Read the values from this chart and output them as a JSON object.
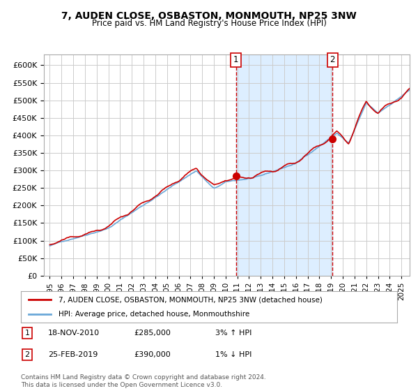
{
  "title": "7, AUDEN CLOSE, OSBASTON, MONMOUTH, NP25 3NW",
  "subtitle": "Price paid vs. HM Land Registry's House Price Index (HPI)",
  "legend_line1": "7, AUDEN CLOSE, OSBASTON, MONMOUTH, NP25 3NW (detached house)",
  "legend_line2": "HPI: Average price, detached house, Monmouthshire",
  "transaction1_date": "18-NOV-2010",
  "transaction1_price": 285000,
  "transaction1_pct": "3% ↑ HPI",
  "transaction2_date": "25-FEB-2019",
  "transaction2_price": 390000,
  "transaction2_pct": "1% ↓ HPI",
  "footnote": "Contains HM Land Registry data © Crown copyright and database right 2024.\nThis data is licensed under the Open Government Licence v3.0.",
  "hpi_color": "#6aa8d8",
  "price_color": "#cc0000",
  "marker_color": "#cc0000",
  "vline_color": "#cc0000",
  "shade_color": "#ddeeff",
  "bg_color": "#ffffff",
  "grid_color": "#cccccc",
  "ylim": [
    0,
    630000
  ],
  "yticks": [
    0,
    50000,
    100000,
    150000,
    200000,
    250000,
    300000,
    350000,
    400000,
    450000,
    500000,
    550000,
    600000
  ],
  "transaction1_x": 2010.88,
  "transaction2_x": 2019.12
}
